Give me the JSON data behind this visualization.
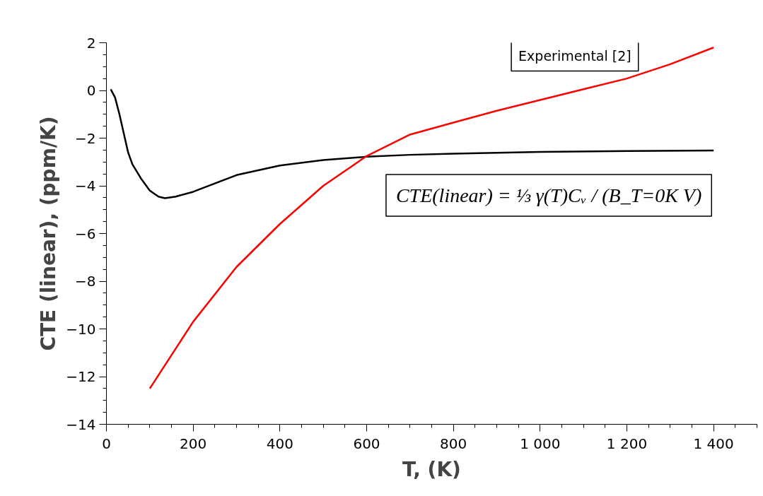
{
  "chart_data": {
    "type": "line",
    "xlabel": "T, (K)",
    "ylabel": "CTE (linear), (ppm/K)",
    "xlim": [
      0,
      1500
    ],
    "ylim": [
      -14,
      2
    ],
    "xticks": [
      0,
      200,
      400,
      600,
      800,
      {
        "value": 1000,
        "label": "1 000"
      },
      {
        "value": 1200,
        "label": "1 200"
      },
      {
        "value": 1400,
        "label": "1 400"
      }
    ],
    "yticks": [
      -14,
      -12,
      -10,
      -8,
      -6,
      -4,
      -2,
      0,
      2
    ],
    "grid": false,
    "marker": "none",
    "line_style": "solid",
    "series": [
      {
        "color": "#000000",
        "x": [
          10,
          20,
          30,
          40,
          50,
          60,
          80,
          100,
          120,
          135,
          160,
          200,
          250,
          300,
          400,
          500,
          600,
          700,
          800,
          1000,
          1200,
          1400
        ],
        "values": [
          0.05,
          -0.3,
          -1.0,
          -1.8,
          -2.6,
          -3.1,
          -3.7,
          -4.2,
          -4.45,
          -4.52,
          -4.45,
          -4.25,
          -3.9,
          -3.55,
          -3.15,
          -2.92,
          -2.78,
          -2.7,
          -2.65,
          -2.58,
          -2.54,
          -2.52
        ]
      },
      {
        "color": "#ff0000",
        "x": [
          100,
          200,
          300,
          400,
          500,
          600,
          700,
          800,
          900,
          1000,
          1100,
          1200,
          1300,
          1400
        ],
        "values": [
          -12.5,
          -9.7,
          -7.4,
          -5.6,
          -4.0,
          -2.75,
          -1.85,
          -1.35,
          -0.85,
          -0.4,
          0.05,
          0.5,
          1.1,
          1.8
        ]
      }
    ],
    "annotations": [
      "Experimental [2]",
      "CTE(linear) = ⅓ γ(T)Cᵥ / (B_T=0K V)"
    ]
  }
}
